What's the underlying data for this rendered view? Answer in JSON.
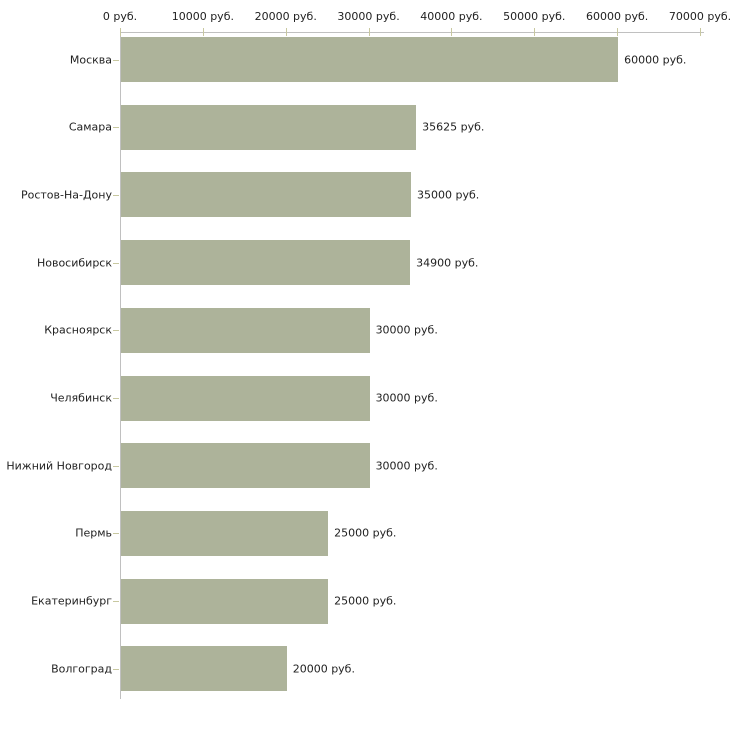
{
  "chart_data": {
    "type": "bar",
    "orientation": "horizontal",
    "title": "",
    "categories": [
      "Москва",
      "Самара",
      "Ростов-На-Дону",
      "Новосибирск",
      "Красноярск",
      "Челябинск",
      "Нижний Новгород",
      "Пермь",
      "Екатеринбург",
      "Волгоград"
    ],
    "values": [
      60000,
      35625,
      35000,
      34900,
      30000,
      30000,
      30000,
      25000,
      25000,
      20000
    ],
    "value_labels": [
      "60000 руб.",
      "35625 руб.",
      "35000 руб.",
      "34900 руб.",
      "30000 руб.",
      "30000 руб.",
      "30000 руб.",
      "25000 руб.",
      "25000 руб.",
      "20000 руб."
    ],
    "x_axis": {
      "position": "top",
      "range": [
        0,
        70000
      ],
      "ticks": [
        0,
        10000,
        20000,
        30000,
        40000,
        50000,
        60000,
        70000
      ],
      "tick_labels": [
        "0 руб.",
        "10000 руб.",
        "20000 руб.",
        "30000 руб.",
        "40000 руб.",
        "50000 руб.",
        "60000 руб.",
        "70000 руб."
      ]
    },
    "ylabel": "",
    "xlabel": "",
    "grid": false,
    "legend": null,
    "colors": {
      "bar": "#adb39a",
      "axis_line": "#c0c0c0",
      "tick_mark": "#c8c8a0",
      "text": "#222222",
      "background": "#ffffff"
    }
  }
}
